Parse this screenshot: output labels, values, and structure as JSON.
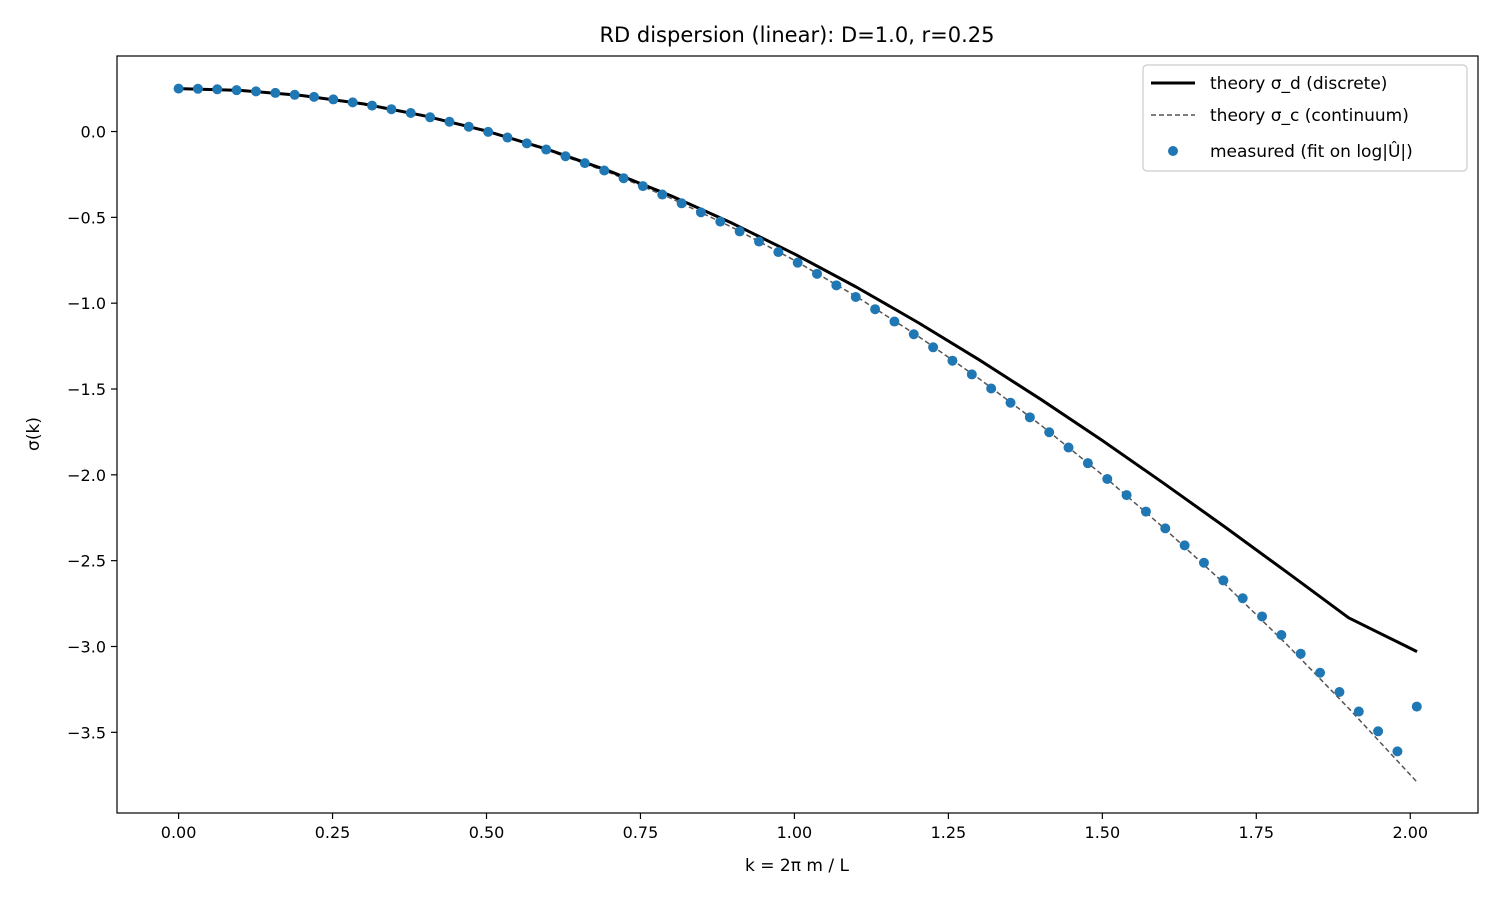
{
  "chart_data": {
    "type": "line",
    "title": "RD dispersion (linear): D=1.0, r=0.25",
    "xlabel": "k = 2π m / L",
    "ylabel": "σ(k)",
    "xlim": [
      -0.1,
      2.11
    ],
    "ylim": [
      -3.97,
      0.44
    ],
    "xticks": [
      0.0,
      0.25,
      0.5,
      0.75,
      1.0,
      1.25,
      1.5,
      1.75,
      2.0
    ],
    "xtick_labels": [
      "0.00",
      "0.25",
      "0.50",
      "0.75",
      "1.00",
      "1.25",
      "1.50",
      "1.75",
      "2.00"
    ],
    "yticks": [
      0.0,
      -0.5,
      -1.0,
      -1.5,
      -2.0,
      -2.5,
      -3.0,
      -3.5
    ],
    "ytick_labels": [
      "0.0",
      "−0.5",
      "−1.0",
      "−1.5",
      "−2.0",
      "−2.5",
      "−3.0",
      "−3.5"
    ],
    "grid": false,
    "legend_position": "top-right",
    "series": [
      {
        "name": "theory σ_d (discrete)",
        "style": "solid",
        "color": "#000000",
        "x": [
          0.0,
          0.1,
          0.2,
          0.3,
          0.4,
          0.5,
          0.6,
          0.7,
          0.8,
          0.9,
          1.0,
          1.1,
          1.2,
          1.3,
          1.4,
          1.5,
          1.6,
          1.7,
          1.8,
          1.9,
          2.011
        ],
        "y": [
          0.25,
          0.24,
          0.21,
          0.161,
          0.091,
          0.003,
          -0.105,
          -0.231,
          -0.375,
          -0.536,
          -0.713,
          -0.905,
          -1.111,
          -1.33,
          -1.56,
          -1.8,
          -2.05,
          -2.306,
          -2.568,
          -2.833,
          -3.03
        ]
      },
      {
        "name": "theory σ_c (continuum)",
        "style": "dashed",
        "color": "#555555",
        "x": [
          0.0,
          0.1,
          0.2,
          0.3,
          0.4,
          0.5,
          0.6,
          0.7,
          0.8,
          0.9,
          1.0,
          1.1,
          1.2,
          1.3,
          1.4,
          1.5,
          1.6,
          1.7,
          1.8,
          1.9,
          2.011
        ],
        "y": [
          0.25,
          0.24,
          0.21,
          0.16,
          0.09,
          0.0,
          -0.11,
          -0.24,
          -0.39,
          -0.56,
          -0.75,
          -0.96,
          -1.19,
          -1.44,
          -1.71,
          -2.0,
          -2.31,
          -2.64,
          -2.99,
          -3.36,
          -3.79
        ]
      },
      {
        "name": "measured (fit on log|Û|)",
        "style": "markers",
        "color": "#1f77b4",
        "x": [
          0.0,
          0.0314,
          0.0628,
          0.0942,
          0.1257,
          0.1571,
          0.1885,
          0.2199,
          0.2513,
          0.2827,
          0.3142,
          0.3456,
          0.377,
          0.4084,
          0.4398,
          0.4712,
          0.5027,
          0.5341,
          0.5655,
          0.5969,
          0.6283,
          0.6597,
          0.6912,
          0.7226,
          0.754,
          0.7854,
          0.8168,
          0.8482,
          0.8796,
          0.9111,
          0.9425,
          0.9739,
          1.0053,
          1.0367,
          1.0681,
          1.0996,
          1.131,
          1.1624,
          1.1938,
          1.2252,
          1.2566,
          1.2881,
          1.3195,
          1.3509,
          1.3823,
          1.4137,
          1.4451,
          1.4765,
          1.508,
          1.5394,
          1.5708,
          1.6022,
          1.6336,
          1.665,
          1.6965,
          1.7279,
          1.7593,
          1.7907,
          1.8221,
          1.8535,
          1.885,
          1.9164,
          1.9478,
          1.9792,
          2.0106
        ],
        "y": [
          0.25,
          0.249,
          0.246,
          0.241,
          0.234,
          0.225,
          0.214,
          0.202,
          0.187,
          0.17,
          0.151,
          0.13,
          0.108,
          0.083,
          0.057,
          0.028,
          -0.002,
          -0.035,
          -0.069,
          -0.105,
          -0.144,
          -0.184,
          -0.227,
          -0.272,
          -0.318,
          -0.367,
          -0.418,
          -0.471,
          -0.525,
          -0.582,
          -0.641,
          -0.702,
          -0.764,
          -0.829,
          -0.896,
          -0.964,
          -1.035,
          -1.107,
          -1.181,
          -1.257,
          -1.335,
          -1.415,
          -1.497,
          -1.58,
          -1.665,
          -1.752,
          -1.841,
          -1.932,
          -2.024,
          -2.118,
          -2.214,
          -2.312,
          -2.411,
          -2.512,
          -2.615,
          -2.719,
          -2.825,
          -2.933,
          -3.042,
          -3.153,
          -3.265,
          -3.379,
          -3.494,
          -3.611,
          -3.35
        ]
      }
    ]
  }
}
